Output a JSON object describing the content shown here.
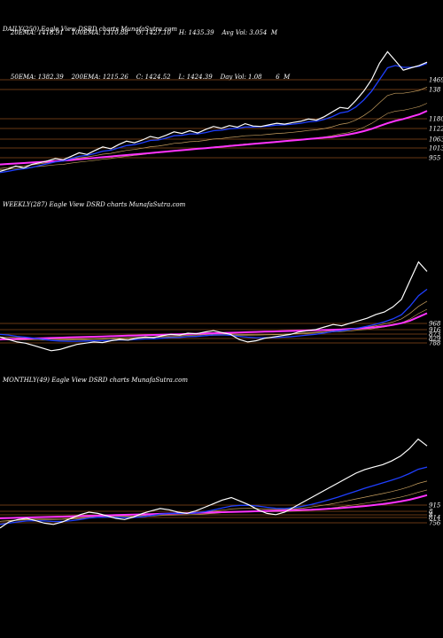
{
  "stats": {
    "row1": [
      "20EMA: 1418.91",
      "100EMA: 1310.88",
      "O: 1427.10",
      "H: 1435.39",
      "Avg Vol: 3.054  M"
    ],
    "row2": [
      "50EMA: 1382.39",
      "200EMA: 1215.26",
      "C: 1424.52",
      "L: 1424.39",
      "Day Vol: 1.08       6  M"
    ]
  },
  "colors": {
    "background": "#000000",
    "price": "#ffffff",
    "ema_short": "#1f3fff",
    "ema_long": "#ff33ff",
    "ema_mid": "#c8a060",
    "level_line": "#8a4a1a"
  },
  "chart_data": [
    {
      "type": "line",
      "title": "DAILY(250) Eagle  View  DSRD charts MunafaSutra.com",
      "level_labels": [
        "1469",
        "138",
        "1180",
        "1122",
        "1063",
        "1013",
        "955"
      ],
      "price": [
        955,
        965,
        978,
        970,
        985,
        992,
        1000,
        1010,
        1005,
        1020,
        1035,
        1028,
        1045,
        1060,
        1052,
        1070,
        1085,
        1078,
        1090,
        1105,
        1098,
        1110,
        1125,
        1118,
        1130,
        1120,
        1135,
        1148,
        1140,
        1152,
        1145,
        1160,
        1150,
        1148,
        1155,
        1162,
        1158,
        1165,
        1170,
        1180,
        1175,
        1190,
        1210,
        1230,
        1225,
        1260,
        1300,
        1350,
        1420,
        1469,
        1430,
        1390,
        1400,
        1410,
        1424
      ],
      "ema_short": [
        950,
        955,
        962,
        966,
        972,
        980,
        988,
        996,
        1000,
        1010,
        1020,
        1024,
        1032,
        1042,
        1046,
        1056,
        1066,
        1070,
        1078,
        1088,
        1090,
        1098,
        1108,
        1110,
        1116,
        1116,
        1122,
        1130,
        1132,
        1138,
        1140,
        1146,
        1146,
        1147,
        1150,
        1154,
        1155,
        1158,
        1162,
        1168,
        1170,
        1178,
        1190,
        1206,
        1212,
        1232,
        1262,
        1300,
        1350,
        1400,
        1410,
        1402,
        1402,
        1406,
        1419
      ],
      "ema_long": [
        985,
        987,
        989,
        991,
        993,
        995,
        997,
        999,
        1001,
        1004,
        1007,
        1010,
        1013,
        1016,
        1019,
        1022,
        1025,
        1028,
        1031,
        1034,
        1037,
        1040,
        1043,
        1046,
        1049,
        1052,
        1055,
        1058,
        1061,
        1064,
        1067,
        1070,
        1073,
        1076,
        1079,
        1082,
        1085,
        1088,
        1091,
        1094,
        1097,
        1100,
        1103,
        1108,
        1113,
        1120,
        1128,
        1138,
        1150,
        1162,
        1172,
        1180,
        1190,
        1200,
        1215
      ]
    },
    {
      "type": "line",
      "title": "WEEKLY(287) Eagle  View  DSRD charts MunafaSutra.com",
      "level_labels": [
        "968",
        "916",
        "873",
        "829",
        "788"
      ],
      "price": [
        900,
        880,
        860,
        850,
        830,
        810,
        790,
        800,
        820,
        840,
        850,
        860,
        855,
        870,
        880,
        875,
        890,
        900,
        895,
        910,
        920,
        915,
        930,
        925,
        940,
        950,
        935,
        920,
        880,
        860,
        870,
        890,
        900,
        910,
        920,
        940,
        950,
        960,
        980,
        1000,
        990,
        1010,
        1030,
        1050,
        1080,
        1100,
        1140,
        1200,
        1350,
        1500,
        1424
      ],
      "ema_short": [
        920,
        915,
        905,
        898,
        890,
        882,
        872,
        868,
        866,
        866,
        868,
        870,
        870,
        873,
        876,
        876,
        880,
        884,
        885,
        890,
        895,
        896,
        902,
        904,
        910,
        916,
        916,
        914,
        905,
        898,
        894,
        894,
        895,
        898,
        902,
        908,
        915,
        922,
        932,
        944,
        950,
        960,
        972,
        986,
        1002,
        1020,
        1044,
        1078,
        1146,
        1230,
        1282
      ],
      "ema_long": [
        880,
        882,
        884,
        886,
        888,
        890,
        892,
        894,
        896,
        898,
        900,
        902,
        904,
        906,
        908,
        910,
        912,
        914,
        916,
        918,
        920,
        922,
        924,
        926,
        928,
        930,
        932,
        934,
        936,
        938,
        940,
        942,
        944,
        946,
        948,
        950,
        952,
        954,
        956,
        958,
        960,
        964,
        968,
        972,
        978,
        986,
        996,
        1010,
        1030,
        1060,
        1090
      ]
    },
    {
      "type": "line",
      "title": "MONTHLY(49) Eagle  View  DSRD charts MunafaSutra.com",
      "level_labels": [
        "915",
        "8",
        "8",
        "814",
        "756"
      ],
      "price": [
        750,
        800,
        820,
        830,
        810,
        790,
        780,
        800,
        830,
        860,
        880,
        870,
        850,
        830,
        820,
        840,
        870,
        890,
        910,
        900,
        880,
        870,
        890,
        920,
        950,
        980,
        1000,
        970,
        940,
        900,
        870,
        860,
        880,
        920,
        960,
        1000,
        1040,
        1080,
        1120,
        1160,
        1200,
        1230,
        1250,
        1270,
        1300,
        1340,
        1400,
        1480,
        1424
      ],
      "ema_short": [
        780,
        790,
        800,
        808,
        810,
        808,
        804,
        804,
        810,
        820,
        832,
        838,
        840,
        838,
        835,
        836,
        842,
        852,
        864,
        870,
        870,
        870,
        874,
        884,
        898,
        914,
        930,
        936,
        936,
        930,
        920,
        912,
        910,
        916,
        928,
        944,
        962,
        982,
        1004,
        1028,
        1052,
        1076,
        1098,
        1120,
        1142,
        1166,
        1196,
        1232,
        1250
      ],
      "ema_long": [
        830,
        832,
        834,
        836,
        838,
        840,
        842,
        844,
        846,
        848,
        850,
        852,
        854,
        856,
        858,
        860,
        862,
        864,
        866,
        868,
        870,
        872,
        874,
        876,
        878,
        880,
        882,
        884,
        886,
        888,
        890,
        892,
        894,
        896,
        898,
        900,
        904,
        908,
        912,
        918,
        924,
        930,
        938,
        946,
        956,
        968,
        982,
        1000,
        1020
      ]
    }
  ]
}
